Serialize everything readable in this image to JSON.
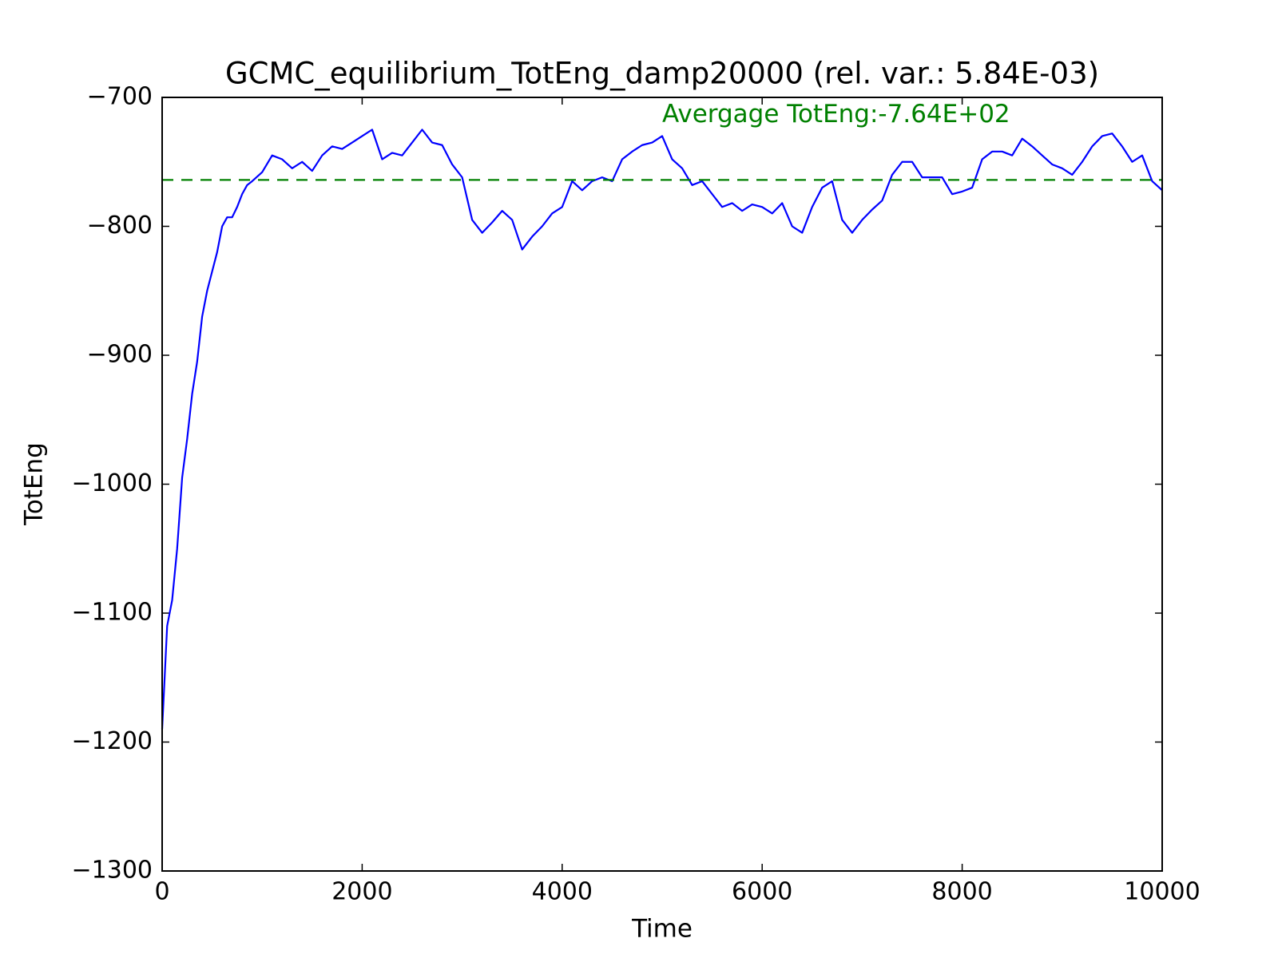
{
  "chart_data": {
    "type": "line",
    "title": "GCMC_equilibrium_TotEng_damp20000 (rel. var.: 5.84E-03)",
    "xlabel": "Time",
    "ylabel": "TotEng",
    "annotation": {
      "text": "Avergage TotEng:-7.64E+02",
      "x": 5000,
      "y": -714,
      "color": "#008000"
    },
    "mean_line": {
      "value": -764,
      "color": "#008000",
      "style": "dashed"
    },
    "xlim": [
      0,
      10000
    ],
    "ylim": [
      -1300,
      -700
    ],
    "xticks": [
      0,
      2000,
      4000,
      6000,
      8000,
      10000
    ],
    "yticks": [
      {
        "value": -1300,
        "label": "−1300"
      },
      {
        "value": -1200,
        "label": "−1200"
      },
      {
        "value": -1100,
        "label": "−1100"
      },
      {
        "value": -1000,
        "label": "−1000"
      },
      {
        "value": -900,
        "label": "−900"
      },
      {
        "value": -800,
        "label": "−800"
      },
      {
        "value": -700,
        "label": "−700"
      }
    ],
    "grid": false,
    "x": [
      0,
      25,
      50,
      100,
      150,
      200,
      250,
      300,
      350,
      400,
      450,
      500,
      550,
      600,
      650,
      700,
      750,
      800,
      850,
      900,
      1000,
      1100,
      1200,
      1300,
      1400,
      1500,
      1600,
      1700,
      1800,
      1900,
      2000,
      2100,
      2200,
      2300,
      2400,
      2500,
      2600,
      2700,
      2800,
      2900,
      3000,
      3100,
      3200,
      3300,
      3400,
      3500,
      3600,
      3700,
      3800,
      3900,
      4000,
      4100,
      4200,
      4300,
      4400,
      4500,
      4600,
      4700,
      4800,
      4900,
      5000,
      5100,
      5200,
      5300,
      5400,
      5500,
      5600,
      5700,
      5800,
      5900,
      6000,
      6100,
      6200,
      6300,
      6400,
      6500,
      6600,
      6700,
      6800,
      6900,
      7000,
      7100,
      7200,
      7300,
      7400,
      7500,
      7600,
      7700,
      7800,
      7900,
      8000,
      8100,
      8200,
      8300,
      8400,
      8500,
      8600,
      8700,
      8800,
      8900,
      9000,
      9100,
      9200,
      9300,
      9400,
      9500,
      9600,
      9700,
      9800,
      9900,
      10000
    ],
    "series": [
      {
        "name": "TotEng",
        "color": "#0000ff",
        "values": [
          -1190,
          -1150,
          -1110,
          -1090,
          -1050,
          -995,
          -965,
          -930,
          -905,
          -870,
          -850,
          -835,
          -820,
          -800,
          -793,
          -793,
          -785,
          -775,
          -768,
          -765,
          -758,
          -745,
          -748,
          -755,
          -750,
          -757,
          -745,
          -738,
          -740,
          -735,
          -730,
          -725,
          -748,
          -743,
          -745,
          -735,
          -725,
          -735,
          -737,
          -752,
          -762,
          -795,
          -805,
          -797,
          -788,
          -795,
          -818,
          -808,
          -800,
          -790,
          -785,
          -765,
          -772,
          -765,
          -762,
          -765,
          -748,
          -742,
          -737,
          -735,
          -730,
          -748,
          -755,
          -768,
          -765,
          -775,
          -785,
          -782,
          -788,
          -783,
          -785,
          -790,
          -782,
          -800,
          -805,
          -785,
          -770,
          -765,
          -795,
          -805,
          -795,
          -787,
          -780,
          -760,
          -750,
          -750,
          -762,
          -762,
          -762,
          -775,
          -773,
          -770,
          -748,
          -742,
          -742,
          -745,
          -732,
          -738,
          -745,
          -752,
          -755,
          -760,
          -750,
          -738,
          -730,
          -728,
          -738,
          -750,
          -745,
          -765,
          -772
        ]
      }
    ]
  }
}
